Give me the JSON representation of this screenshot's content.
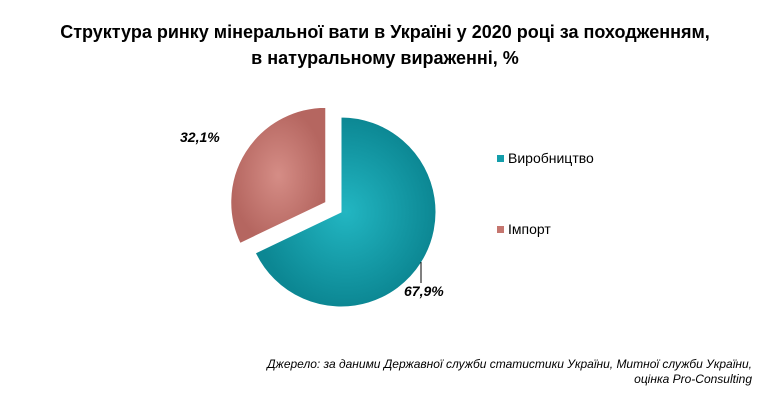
{
  "chart_data": {
    "type": "pie",
    "title_lines": [
      "Структура ринку мінеральної вати в Україні у 2020 році за походженням,",
      "в натуральному вираженні, %"
    ],
    "slices": [
      {
        "label": "Виробництво",
        "value": 67.9,
        "value_label": "67,9%",
        "color": "#149eab",
        "exploded": false
      },
      {
        "label": "Імпорт",
        "value": 32.1,
        "value_label": "32,1%",
        "color": "#c5766f",
        "exploded": true
      }
    ],
    "legend_position": "right",
    "source_lines": [
      "Джерело: за даними Державної служби статистики України, Митної служби України,",
      "оцінка Pro-Consulting"
    ]
  }
}
